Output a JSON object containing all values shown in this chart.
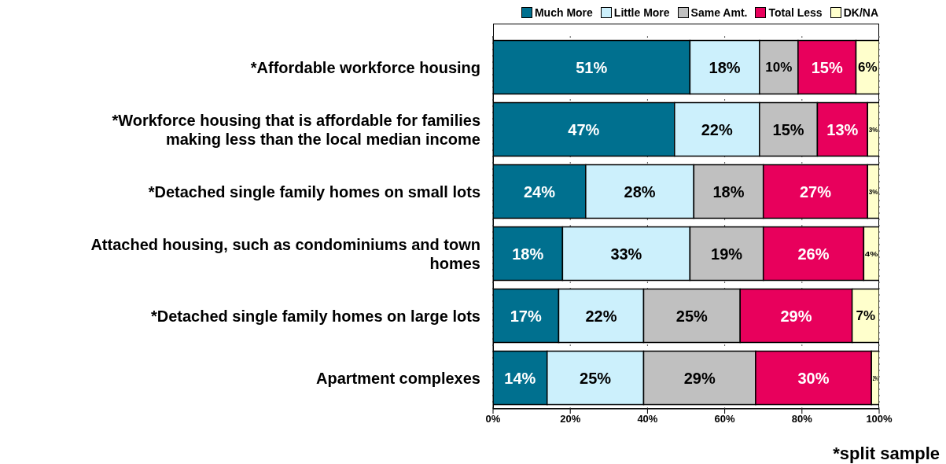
{
  "chart_data": {
    "type": "bar",
    "orientation": "horizontal",
    "stacked": true,
    "categories": [
      "*Affordable workforce housing",
      "*Workforce housing that is affordable for families making less than the local median income",
      "*Detached single family homes on small lots",
      "Attached housing, such as condominiums and town homes",
      "*Detached single family homes on large lots",
      "Apartment complexes"
    ],
    "series": [
      {
        "name": "Much More",
        "color": "#00708f",
        "values": [
          51,
          47,
          24,
          18,
          17,
          14
        ],
        "value_labels": [
          "51%",
          "47%",
          "24%",
          "18%",
          "17%",
          "14%"
        ]
      },
      {
        "name": "Little More",
        "color": "#ccf0fc",
        "values": [
          18,
          22,
          28,
          33,
          22,
          25
        ],
        "value_labels": [
          "18%",
          "22%",
          "28%",
          "33%",
          "22%",
          "25%"
        ]
      },
      {
        "name": "Same Amt.",
        "color": "#c0c0c0",
        "values": [
          10,
          15,
          18,
          19,
          25,
          29
        ],
        "value_labels": [
          "10%",
          "15%",
          "18%",
          "19%",
          "25%",
          "29%"
        ]
      },
      {
        "name": "Total Less",
        "color": "#e8005c",
        "values": [
          15,
          13,
          27,
          26,
          29,
          30
        ],
        "value_labels": [
          "15%",
          "13%",
          "27%",
          "26%",
          "29%",
          "30%"
        ]
      },
      {
        "name": "DK/NA",
        "color": "#ffffcc",
        "values": [
          6,
          3,
          3,
          4,
          7,
          2
        ],
        "value_labels": [
          "6%",
          "3%",
          "3%",
          "4%",
          "7%",
          "2%"
        ]
      }
    ],
    "xlim": [
      0,
      100
    ],
    "xticks": [
      {
        "value": 0,
        "label": "0%"
      },
      {
        "value": 20,
        "label": "20%"
      },
      {
        "value": 40,
        "label": "40%"
      },
      {
        "value": 60,
        "label": "60%"
      },
      {
        "value": 80,
        "label": "80%"
      },
      {
        "value": 100,
        "label": "100%"
      }
    ],
    "grid": "x",
    "legend": "top right",
    "annotations": [
      "*split sample"
    ]
  }
}
